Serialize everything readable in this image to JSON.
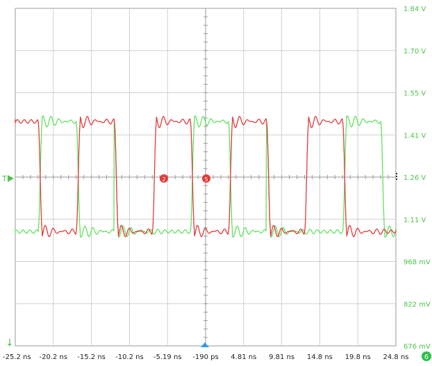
{
  "colors": {
    "background": "#ffffff",
    "grid": "#cfcfcf",
    "axis": "#9a9a9a",
    "channel_green": "#5fe35f",
    "channel_red": "#e23a3a",
    "trigger_blue": "#2a9df4",
    "label_green": "#49c449",
    "time_label": "#222222"
  },
  "markers": {
    "trigger_level_label": "T",
    "ground_marker": "↓",
    "channel_badge": "6",
    "cursor_a": "2",
    "cursor_b": "5"
  },
  "chart_data": {
    "type": "line",
    "x_unit": "ns",
    "y_unit": "V",
    "xlim": [
      -25.2,
      24.8
    ],
    "ylim": [
      0.676,
      1.84
    ],
    "x_ticks": [
      "-25.2 ns",
      "-20.2 ns",
      "-15.2 ns",
      "-10.2 ns",
      "-5.19 ns",
      "-190 ps",
      "4.81 ns",
      "9.81 ns",
      "14.8 ns",
      "19.8 ns",
      "24.8 ns"
    ],
    "y_ticks": [
      "1.84 V",
      "1.70 V",
      "1.55 V",
      "1.41 V",
      "1.26 V",
      "1.11 V",
      "968 mV",
      "822 mV",
      "676 mV"
    ],
    "grid": true,
    "period_ns": 10.0,
    "series": [
      {
        "color": "#5fe35f",
        "high_v": 1.45,
        "low_v": 1.07,
        "rising_edges_ns": [
          -22.2,
          -2.2,
          17.8
        ],
        "falling_edges_ns": [
          -17.2,
          -12.2,
          2.8,
          7.8,
          22.8
        ],
        "comment_free_edges": true
      },
      {
        "color": "#e23a3a",
        "high_v": 1.45,
        "low_v": 1.07,
        "rising_edges_ns": [
          -17.2,
          -7.2,
          2.8,
          12.8
        ],
        "falling_edges_ns": [
          -22.2,
          -12.2,
          -2.2,
          7.8,
          17.8
        ],
        "comment_free_edges": true
      }
    ]
  }
}
